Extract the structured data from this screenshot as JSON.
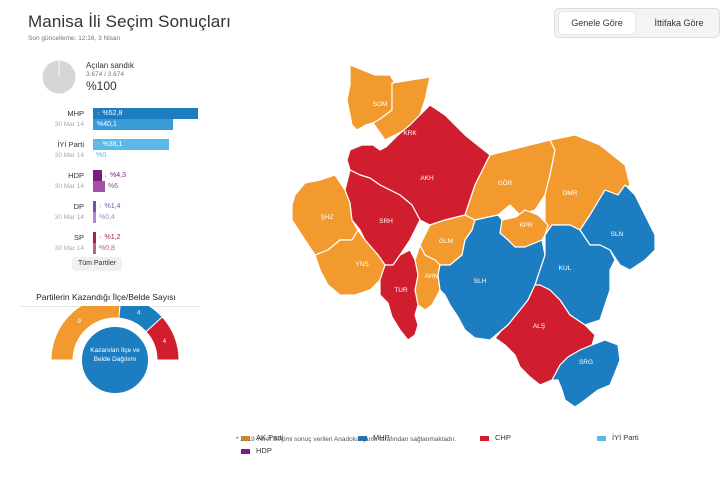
{
  "header": {
    "title": "Manisa İli Seçim Sonuçları",
    "updated": "Son güncelleme: 12:16, 3 Nisan"
  },
  "tabs": [
    {
      "label": "Genele Göre",
      "active": true
    },
    {
      "label": "İttifaka Göre",
      "active": false
    }
  ],
  "ballot": {
    "label": "Açılan sandık",
    "count": "3.674 / 3.674",
    "percent": "%100",
    "fraction": 1.0
  },
  "results": [
    {
      "party": "MHP",
      "value": "%52,8",
      "prev_label": "30 Mar 14",
      "prev_value": "%40,1",
      "pct": 52.8,
      "prev_pct": 40.1,
      "color": "#1c7ec0",
      "prev_color": "#3a9ad8",
      "arrow": "↑"
    },
    {
      "party": "İYİ Parti",
      "value": "%38,1",
      "prev_label": "30 Mar 14",
      "prev_value": "%0",
      "pct": 38.1,
      "prev_pct": 0,
      "color": "#5bb8e8",
      "prev_color": "#5bb8e8",
      "arrow": "↑"
    },
    {
      "party": "HDP",
      "value": "%4,3",
      "prev_label": "30 Mar 14",
      "prev_value": "%6",
      "pct": 4.3,
      "prev_pct": 6,
      "color": "#7b1f7f",
      "prev_color": "#a34ea7",
      "arrow": "↓"
    },
    {
      "party": "DP",
      "value": "%1,4",
      "prev_label": "30 Mar 14",
      "prev_value": "%0,4",
      "pct": 1.4,
      "prev_pct": 0.4,
      "color": "#7b4fa8",
      "prev_color": "#a98ad0",
      "arrow": "↑"
    },
    {
      "party": "SP",
      "value": "%1,2",
      "prev_label": "30 Mar 14",
      "prev_value": "%0,8",
      "pct": 1.2,
      "prev_pct": 0.8,
      "color": "#a0215f",
      "prev_color": "#c55c8c",
      "arrow": "↑"
    }
  ],
  "all_parties_label": "Tüm Partiler",
  "won": {
    "title": "Partilerin Kazandığı İlçe/Belde Sayısı",
    "center_label": "Kazanılan İlçe ve Belde Dağılımı",
    "segments": [
      {
        "party": "AK Parti",
        "count": "9",
        "color": "#f39a2e"
      },
      {
        "party": "MHP",
        "count": "4",
        "color": "#1c7ec0"
      },
      {
        "party": "CHP",
        "count": "4",
        "color": "#d01e2e"
      }
    ]
  },
  "legend": [
    {
      "label": "AK Parti",
      "color": "#f39a2e"
    },
    {
      "label": "MHP",
      "color": "#1c7ec0"
    },
    {
      "label": "CHP",
      "color": "#d01e2e"
    },
    {
      "label": "İYİ Parti",
      "color": "#5bb8e8"
    },
    {
      "label": "HDP",
      "color": "#7b1f7f"
    }
  ],
  "districts": [
    {
      "code": "SOM",
      "party": "AK Parti",
      "color": "#f39a2e"
    },
    {
      "code": "KRK",
      "party": "AK Parti",
      "color": "#f39a2e"
    },
    {
      "code": "AKH",
      "party": "CHP",
      "color": "#d01e2e"
    },
    {
      "code": "GÖR",
      "party": "AK Parti",
      "color": "#f39a2e"
    },
    {
      "code": "DMR",
      "party": "AK Parti",
      "color": "#f39a2e"
    },
    {
      "code": "ŞHZ",
      "party": "AK Parti",
      "color": "#f39a2e"
    },
    {
      "code": "SRH",
      "party": "CHP",
      "color": "#d01e2e"
    },
    {
      "code": "KPR",
      "party": "AK Parti",
      "color": "#f39a2e"
    },
    {
      "code": "SLN",
      "party": "MHP",
      "color": "#1c7ec0"
    },
    {
      "code": "GLM",
      "party": "AK Parti",
      "color": "#f39a2e"
    },
    {
      "code": "YNS",
      "party": "AK Parti",
      "color": "#f39a2e"
    },
    {
      "code": "AHM",
      "party": "AK Parti",
      "color": "#f39a2e"
    },
    {
      "code": "SLH",
      "party": "MHP",
      "color": "#1c7ec0"
    },
    {
      "code": "KUL",
      "party": "MHP",
      "color": "#1c7ec0"
    },
    {
      "code": "TUR",
      "party": "CHP",
      "color": "#d01e2e"
    },
    {
      "code": "ALŞ",
      "party": "CHP",
      "color": "#d01e2e"
    },
    {
      "code": "SRG",
      "party": "MHP",
      "color": "#1c7ec0"
    }
  ],
  "note": "* 2019 Yerel Seçimi sonuç verileri Anadolu Ajansı tarafından sağlanmaktadır."
}
